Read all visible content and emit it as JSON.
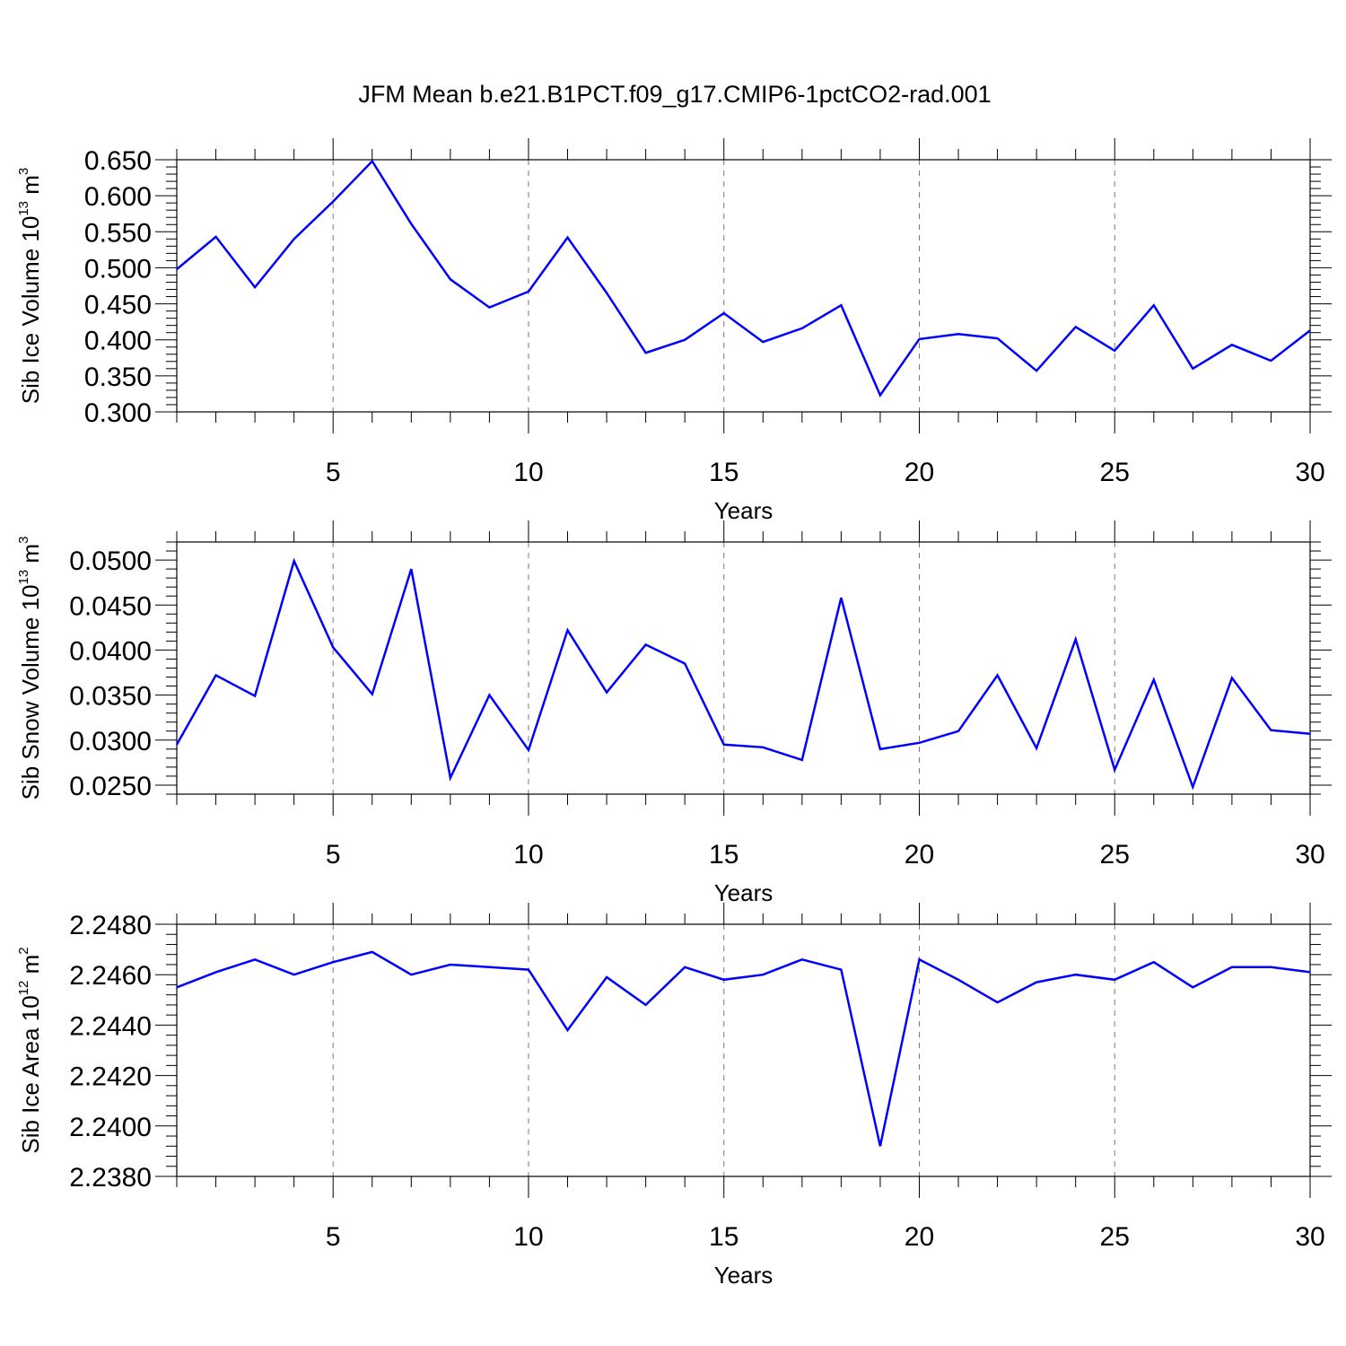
{
  "title": "JFM Mean b.e21.B1PCT.f09_g17.CMIP6-1pctCO2-rad.001",
  "colors": {
    "series": "#0000ff",
    "axis": "#000000",
    "grid": "#777777"
  },
  "chart_data": [
    {
      "type": "line",
      "ylabel_base": "Sib Ice Volume 10",
      "ylabel_exp": "13",
      "ylabel_unit": " m",
      "ylabel_unit_exp": "3",
      "xlabel": "Years",
      "xlim": [
        1,
        30
      ],
      "ylim": [
        0.3,
        0.65
      ],
      "xticks": [
        5,
        10,
        15,
        20,
        25,
        30
      ],
      "yticks": [
        "0.300",
        "0.350",
        "0.400",
        "0.450",
        "0.500",
        "0.550",
        "0.600",
        "0.650"
      ],
      "ytick_values": [
        0.3,
        0.35,
        0.4,
        0.45,
        0.5,
        0.55,
        0.6,
        0.65
      ],
      "grid_x": true,
      "x": [
        1,
        2,
        3,
        4,
        5,
        6,
        7,
        8,
        9,
        10,
        11,
        12,
        13,
        14,
        15,
        16,
        17,
        18,
        19,
        20,
        21,
        22,
        23,
        24,
        25,
        26,
        27,
        28,
        29,
        30
      ],
      "values": [
        0.498,
        0.543,
        0.473,
        0.54,
        0.592,
        0.648,
        0.561,
        0.484,
        0.445,
        0.467,
        0.542,
        0.465,
        0.382,
        0.4,
        0.437,
        0.397,
        0.416,
        0.448,
        0.323,
        0.401,
        0.408,
        0.402,
        0.357,
        0.418,
        0.385,
        0.448,
        0.36,
        0.393,
        0.371,
        0.413
      ]
    },
    {
      "type": "line",
      "ylabel_base": "Sib Snow Volume 10",
      "ylabel_exp": "13",
      "ylabel_unit": " m",
      "ylabel_unit_exp": "3",
      "xlabel": "Years",
      "xlim": [
        1,
        30
      ],
      "ylim": [
        0.024,
        0.052
      ],
      "xticks": [
        5,
        10,
        15,
        20,
        25,
        30
      ],
      "yticks": [
        "0.0250",
        "0.0300",
        "0.0350",
        "0.0400",
        "0.0450",
        "0.0500"
      ],
      "ytick_values": [
        0.025,
        0.03,
        0.035,
        0.04,
        0.045,
        0.05
      ],
      "grid_x": true,
      "x": [
        1,
        2,
        3,
        4,
        5,
        6,
        7,
        8,
        9,
        10,
        11,
        12,
        13,
        14,
        15,
        16,
        17,
        18,
        19,
        20,
        21,
        22,
        23,
        24,
        25,
        26,
        27,
        28,
        29,
        30
      ],
      "values": [
        0.0295,
        0.0372,
        0.0349,
        0.0499,
        0.0403,
        0.0351,
        0.049,
        0.0258,
        0.035,
        0.0289,
        0.0422,
        0.0353,
        0.0406,
        0.0385,
        0.0295,
        0.0292,
        0.0278,
        0.0458,
        0.029,
        0.0297,
        0.031,
        0.0372,
        0.0291,
        0.0412,
        0.0267,
        0.0367,
        0.0248,
        0.0369,
        0.0311,
        0.0307
      ]
    },
    {
      "type": "line",
      "ylabel_base": "Sib Ice Area 10",
      "ylabel_exp": "12",
      "ylabel_unit": " m",
      "ylabel_unit_exp": "2",
      "xlabel": "Years",
      "xlim": [
        1,
        30
      ],
      "ylim": [
        2.238,
        2.248
      ],
      "xticks": [
        5,
        10,
        15,
        20,
        25,
        30
      ],
      "yticks": [
        "2.2380",
        "2.2400",
        "2.2420",
        "2.2440",
        "2.2460",
        "2.2480"
      ],
      "ytick_values": [
        2.238,
        2.24,
        2.242,
        2.244,
        2.246,
        2.248
      ],
      "grid_x": true,
      "x": [
        1,
        2,
        3,
        4,
        5,
        6,
        7,
        8,
        9,
        10,
        11,
        12,
        13,
        14,
        15,
        16,
        17,
        18,
        19,
        20,
        21,
        22,
        23,
        24,
        25,
        26,
        27,
        28,
        29,
        30
      ],
      "values": [
        2.2455,
        2.2461,
        2.2466,
        2.246,
        2.2465,
        2.2469,
        2.246,
        2.2464,
        2.2463,
        2.2462,
        2.2438,
        2.2459,
        2.2448,
        2.2463,
        2.2458,
        2.246,
        2.2466,
        2.2462,
        2.2392,
        2.2466,
        2.2458,
        2.2449,
        2.2457,
        2.246,
        2.2458,
        2.2465,
        2.2455,
        2.2463,
        2.2463,
        2.2461
      ]
    }
  ]
}
